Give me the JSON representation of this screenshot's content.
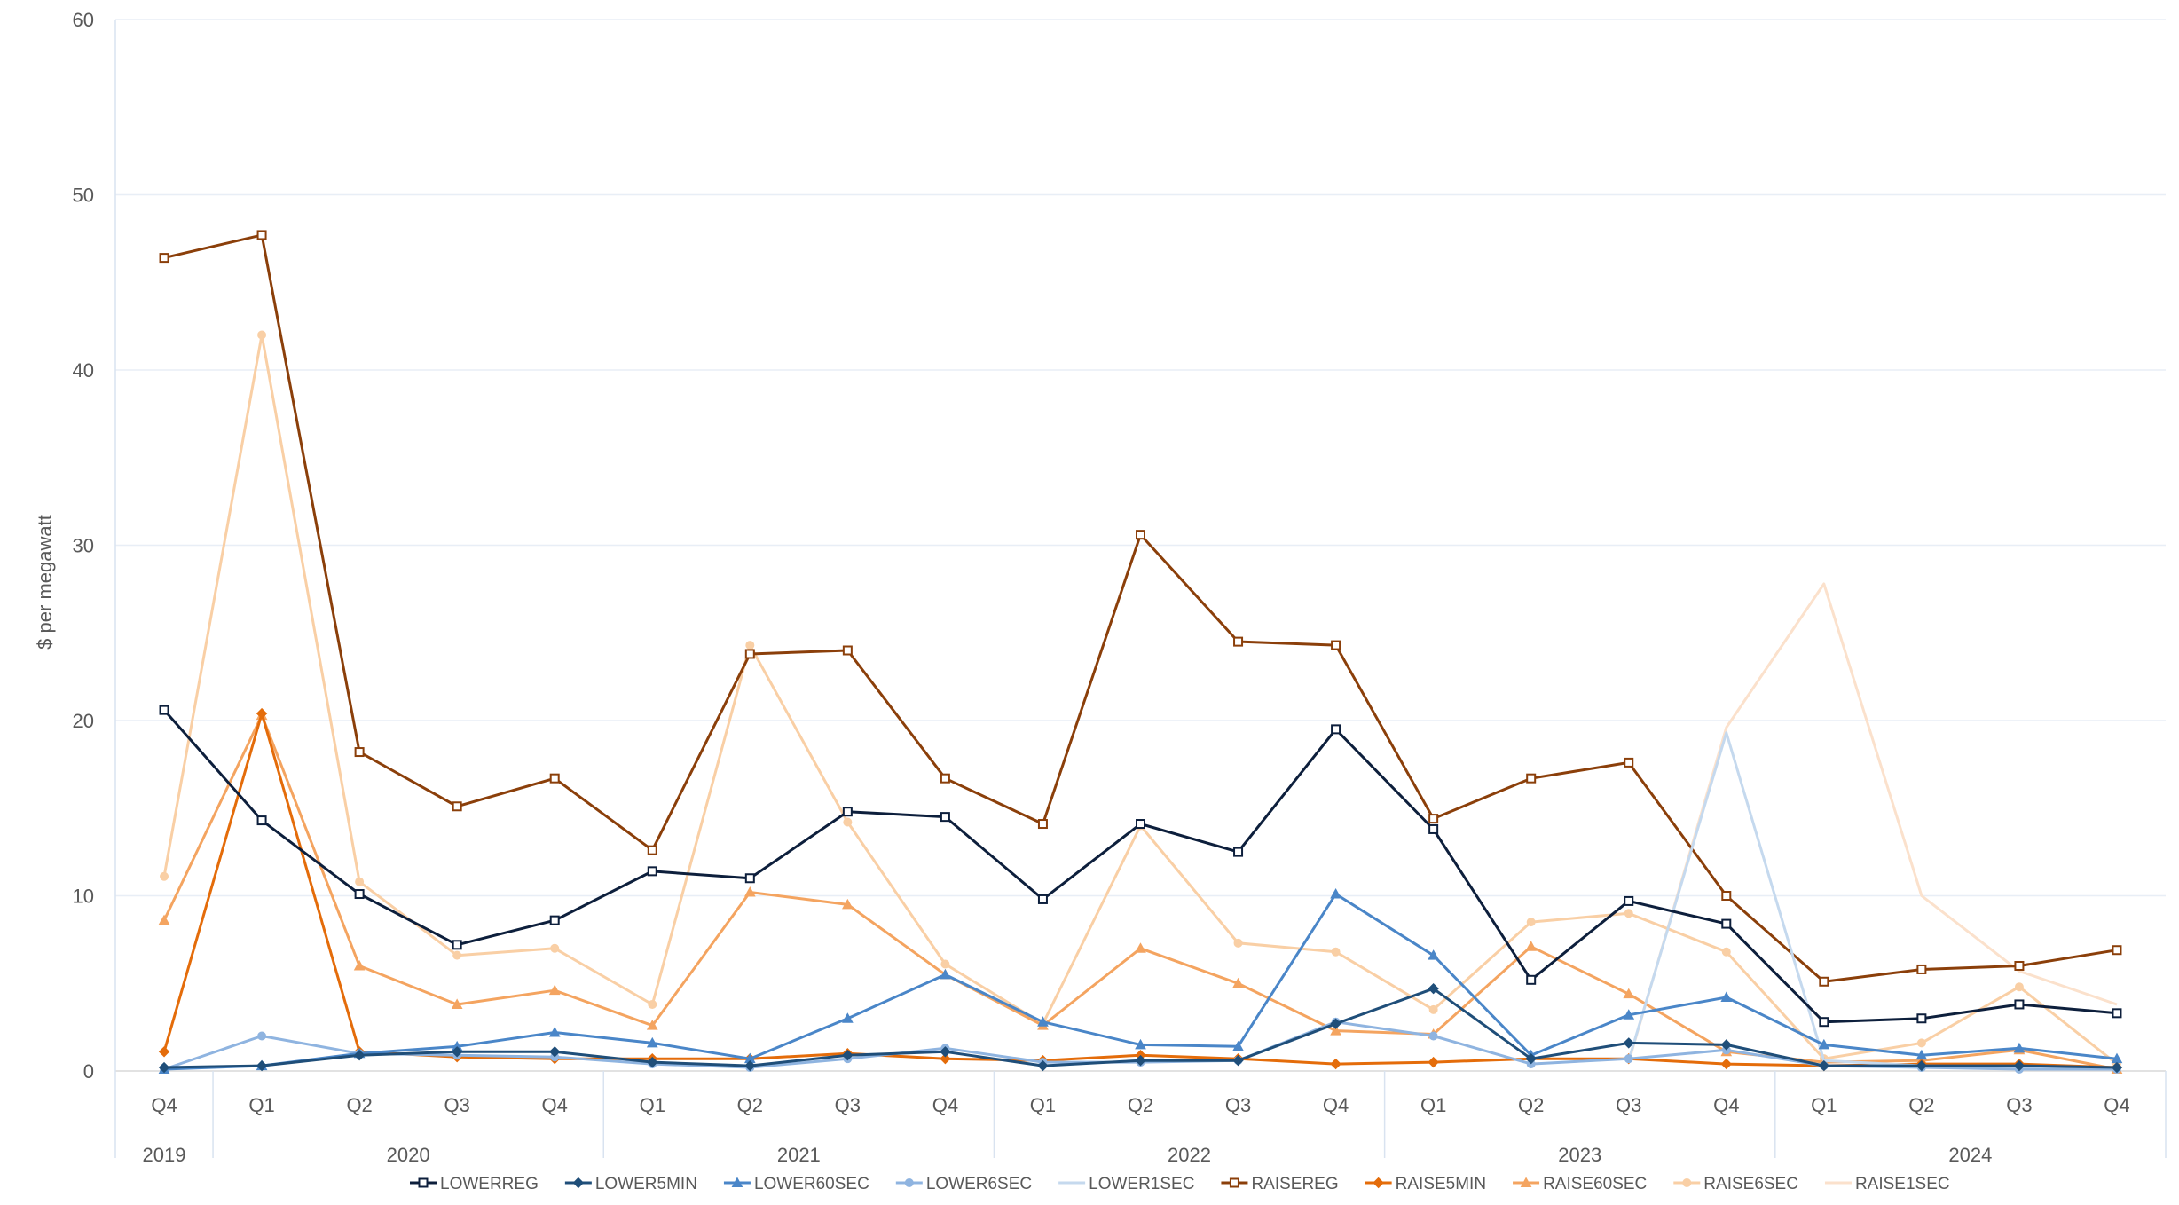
{
  "chart_data": {
    "type": "line",
    "ylabel": "$ per megawatt",
    "ylim": [
      0,
      60
    ],
    "yticks": [
      "0",
      "10",
      "20",
      "30",
      "40",
      "50",
      "60"
    ],
    "quarters": [
      "Q4",
      "Q1",
      "Q2",
      "Q3",
      "Q4",
      "Q1",
      "Q2",
      "Q3",
      "Q4",
      "Q1",
      "Q2",
      "Q3",
      "Q4",
      "Q1",
      "Q2",
      "Q3",
      "Q4",
      "Q1",
      "Q2",
      "Q3",
      "Q4"
    ],
    "years": [
      {
        "label": "2019",
        "start": 0,
        "end": 0
      },
      {
        "label": "2020",
        "start": 1,
        "end": 4
      },
      {
        "label": "2021",
        "start": 5,
        "end": 8
      },
      {
        "label": "2022",
        "start": 9,
        "end": 12
      },
      {
        "label": "2023",
        "start": 13,
        "end": 16
      },
      {
        "label": "2024",
        "start": 17,
        "end": 20
      }
    ],
    "grid": true,
    "legend": "bottom",
    "series": [
      {
        "name": "LOWERREG",
        "color": "#0d1f3c",
        "marker": "square",
        "values": [
          20.6,
          14.3,
          10.1,
          7.2,
          8.6,
          11.4,
          11.0,
          14.8,
          14.5,
          9.8,
          14.1,
          12.5,
          19.5,
          13.8,
          5.2,
          9.7,
          8.4,
          2.8,
          3.0,
          3.8,
          3.3
        ]
      },
      {
        "name": "LOWER5MIN",
        "color": "#1f4e79",
        "marker": "diamond",
        "values": [
          0.2,
          0.3,
          0.9,
          1.1,
          1.1,
          0.5,
          0.3,
          0.9,
          1.1,
          0.3,
          0.6,
          0.6,
          2.7,
          4.7,
          0.7,
          1.6,
          1.5,
          0.3,
          0.3,
          0.3,
          0.2
        ]
      },
      {
        "name": "LOWER60SEC",
        "color": "#4a86c8",
        "marker": "triangle",
        "values": [
          0.1,
          0.3,
          1.0,
          1.4,
          2.2,
          1.6,
          0.7,
          3.0,
          5.5,
          2.8,
          1.5,
          1.4,
          10.1,
          6.6,
          0.9,
          3.2,
          4.2,
          1.5,
          0.9,
          1.3,
          0.7
        ]
      },
      {
        "name": "LOWER6SEC",
        "color": "#8fb4e0",
        "marker": "circle",
        "values": [
          0.1,
          2.0,
          1.0,
          0.9,
          0.8,
          0.4,
          0.2,
          0.7,
          1.3,
          0.5,
          0.5,
          0.6,
          2.8,
          2.0,
          0.4,
          0.7,
          1.2,
          0.3,
          0.2,
          0.1,
          0.1
        ]
      },
      {
        "name": "LOWER1SEC",
        "color": "#c5d9ee",
        "marker": "none",
        "values": [
          null,
          null,
          null,
          null,
          null,
          null,
          null,
          null,
          null,
          null,
          null,
          null,
          null,
          null,
          null,
          0.6,
          19.3,
          0.6,
          0.3,
          0.2,
          0.1
        ]
      },
      {
        "name": "RAISEREG",
        "color": "#8b3f0a",
        "marker": "square",
        "values": [
          46.4,
          47.7,
          18.2,
          15.1,
          16.7,
          12.6,
          23.8,
          24.0,
          16.7,
          14.1,
          30.6,
          24.5,
          24.3,
          14.4,
          16.7,
          17.6,
          10.0,
          5.1,
          5.8,
          6.0,
          6.9
        ]
      },
      {
        "name": "RAISE5MIN",
        "color": "#e46c0a",
        "marker": "diamond",
        "values": [
          1.1,
          20.4,
          1.1,
          0.8,
          0.7,
          0.7,
          0.7,
          1.0,
          0.7,
          0.6,
          0.9,
          0.7,
          0.4,
          0.5,
          0.7,
          0.7,
          0.4,
          0.3,
          0.4,
          0.4,
          0.2
        ]
      },
      {
        "name": "RAISE60SEC",
        "color": "#f4a460",
        "marker": "triangle",
        "values": [
          8.6,
          20.3,
          6.0,
          3.8,
          4.6,
          2.6,
          10.2,
          9.5,
          5.5,
          2.6,
          7.0,
          5.0,
          2.3,
          2.1,
          7.1,
          4.4,
          1.1,
          0.5,
          0.6,
          1.2,
          0.1
        ]
      },
      {
        "name": "RAISE6SEC",
        "color": "#f9cfa5",
        "marker": "circle",
        "values": [
          11.1,
          42.0,
          10.8,
          6.6,
          7.0,
          3.8,
          24.3,
          14.2,
          6.1,
          2.7,
          14.0,
          7.3,
          6.8,
          3.5,
          8.5,
          9.0,
          6.8,
          0.7,
          1.6,
          4.8,
          0.4
        ]
      },
      {
        "name": "RAISE1SEC",
        "color": "#fbe1cc",
        "marker": "none",
        "values": [
          null,
          null,
          null,
          null,
          null,
          null,
          null,
          null,
          null,
          null,
          null,
          null,
          null,
          null,
          null,
          0.5,
          19.6,
          27.8,
          10.0,
          5.7,
          3.8
        ]
      }
    ]
  }
}
